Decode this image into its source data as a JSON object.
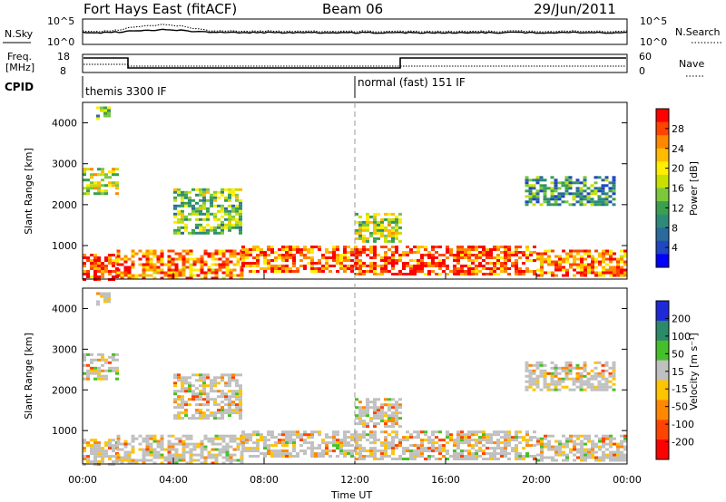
{
  "header": {
    "station": "Fort Hays East (fitACF)",
    "beam": "Beam 06",
    "date": "29/Jun/2011"
  },
  "panels": {
    "nsky_label": "N.Sky",
    "nsearch_label": "N.Search",
    "nsky_ticks": [
      "10^5",
      "10^0"
    ],
    "nsearch_ticks": [
      "10^5",
      "10^0"
    ],
    "freq_label_line1": "Freq.",
    "freq_label_line2": "[MHz]",
    "freq_ticks": [
      "18",
      "8"
    ],
    "nave_label": "Nave",
    "nave_ticks": [
      "60",
      "0"
    ],
    "cpid_label": "CPID",
    "cpid_segments": [
      {
        "text": "themis 3300 IF",
        "start_hour": 0
      },
      {
        "text": "normal (fast) 151 IF",
        "start_hour": 12
      }
    ]
  },
  "colorbars": {
    "power": {
      "label": "Power [dB]",
      "ticks": [
        "28",
        "24",
        "20",
        "16",
        "12",
        "8",
        "4"
      ],
      "colors": [
        "#ff0000",
        "#ff4400",
        "#ff8800",
        "#ffbb00",
        "#ffee00",
        "#c8e000",
        "#7cc83c",
        "#3aa050",
        "#2e8a78",
        "#2a6a9c",
        "#2046c0",
        "#0000ff"
      ]
    },
    "velocity": {
      "label": "Velocity [m s⁻¹]",
      "ticks": [
        "200",
        "100",
        "50",
        "15",
        "-15",
        "-50",
        "-100",
        "-200"
      ],
      "colors": [
        "#1e2ad8",
        "#2a8a6a",
        "#46c02a",
        "#c0c0c0",
        "#ffc400",
        "#ff8800",
        "#ff4400",
        "#ff0000"
      ]
    }
  },
  "chart_data": [
    {
      "type": "heatmap",
      "title": "Power",
      "ylabel": "Slant Range [km]",
      "x_range_hours": [
        0,
        24
      ],
      "ylim": [
        180,
        4500
      ],
      "yticks": [
        "4000",
        "3000",
        "2000",
        "1000"
      ],
      "cbar_label": "Power [dB]",
      "cbar_range": [
        0,
        30
      ],
      "echo_regions": [
        {
          "t0": 0.0,
          "t1": 1.5,
          "r0": 200,
          "r1": 800,
          "level": 26
        },
        {
          "t0": 1.5,
          "t1": 7.0,
          "r0": 200,
          "r1": 900,
          "level": 24
        },
        {
          "t0": 7.0,
          "t1": 12.0,
          "r0": 400,
          "r1": 1000,
          "level": 25
        },
        {
          "t0": 12.0,
          "t1": 20.0,
          "r0": 300,
          "r1": 1000,
          "level": 26
        },
        {
          "t0": 20.0,
          "t1": 24.0,
          "r0": 300,
          "r1": 900,
          "level": 24
        },
        {
          "t0": 0.0,
          "t1": 1.5,
          "r0": 2300,
          "r1": 2900,
          "level": 18
        },
        {
          "t0": 4.0,
          "t1": 7.0,
          "r0": 1300,
          "r1": 2400,
          "level": 14
        },
        {
          "t0": 12.0,
          "t1": 14.0,
          "r0": 1100,
          "r1": 1800,
          "level": 16
        },
        {
          "t0": 19.5,
          "t1": 23.5,
          "r0": 2000,
          "r1": 2700,
          "level": 10
        },
        {
          "t0": 0.6,
          "t1": 1.2,
          "r0": 4100,
          "r1": 4400,
          "level": 12
        }
      ]
    },
    {
      "type": "heatmap",
      "title": "Velocity",
      "ylabel": "Slant Range [km]",
      "xlabel": "Time UT",
      "x_range_hours": [
        0,
        24
      ],
      "ylim": [
        180,
        4500
      ],
      "yticks": [
        "4000",
        "3000",
        "2000",
        "1000"
      ],
      "xticks": [
        "00:00",
        "04:00",
        "08:00",
        "12:00",
        "16:00",
        "20:00",
        "00:00"
      ],
      "cbar_label": "Velocity [m s⁻¹]",
      "cbar_range": [
        -250,
        250
      ]
    }
  ]
}
